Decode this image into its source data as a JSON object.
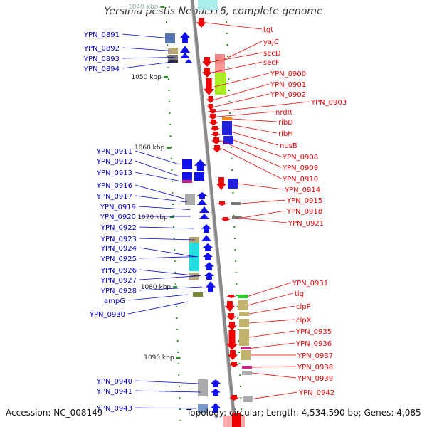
{
  "title": "Yersinia pestis Nepal516, complete genome",
  "footer": {
    "accession": "Accession: NC_008149",
    "topology": "Topology: circular; Length: 4,534,590 bp; Genes: 4,085"
  },
  "colors": {
    "left_label": "#0000cc",
    "right_label": "#ee0000",
    "backbone": "#888888",
    "tick": "#2e8b2e"
  },
  "scale_ticks": [
    {
      "label": "1040 kbp",
      "visible": "partial"
    },
    {
      "label": "1050 kbp"
    },
    {
      "label": "1060 kbp"
    },
    {
      "label": "1070 kbp"
    },
    {
      "label": "1080 kbp"
    },
    {
      "label": "1090 kbp"
    }
  ],
  "left_genes": [
    "YPN_0891",
    "YPN_0892",
    "YPN_0893",
    "YPN_0894",
    "YPN_0911",
    "YPN_0912",
    "YPN_0913",
    "YPN_0916",
    "YPN_0917",
    "YPN_0919",
    "YPN_0920",
    "YPN_0922",
    "YPN_0923",
    "YPN_0924",
    "YPN_0925",
    "YPN_0926",
    "YPN_0927",
    "YPN_0928",
    "ampG",
    "YPN_0930",
    "YPN_0940",
    "YPN_0941",
    "YPN_0943"
  ],
  "right_genes": [
    "tgt",
    "yajC",
    "secD",
    "secF",
    "YPN_0900",
    "YPN_0901",
    "YPN_0902",
    "YPN_0903",
    "nrdR",
    "ribD",
    "ribH",
    "nusB",
    "YPN_0908",
    "YPN_0909",
    "YPN_0910",
    "YPN_0914",
    "YPN_0915",
    "YPN_0918",
    "YPN_0921",
    "YPN_0931",
    "tig",
    "clpP",
    "clpX",
    "YPN_0935",
    "YPN_0936",
    "YPN_0937",
    "YPN_0938",
    "YPN_0939",
    "YPN_0942"
  ]
}
